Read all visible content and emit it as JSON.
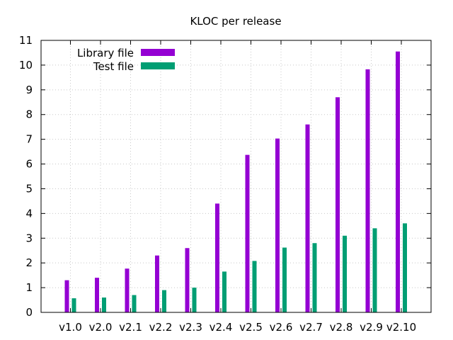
{
  "chart_data": {
    "type": "bar",
    "title": "KLOC per release",
    "xlabel": "",
    "ylabel": "",
    "categories": [
      "v1.0",
      "v2.0",
      "v2.1",
      "v2.2",
      "v2.3",
      "v2.4",
      "v2.5",
      "v2.6",
      "v2.7",
      "v2.8",
      "v2.9",
      "v2.10"
    ],
    "series": [
      {
        "name": "Library file",
        "color": "#9400d3",
        "values": [
          1.3,
          1.4,
          1.77,
          2.3,
          2.6,
          4.4,
          6.37,
          7.03,
          7.6,
          8.7,
          9.83,
          10.55
        ]
      },
      {
        "name": "Test file",
        "color": "#009e73",
        "values": [
          0.57,
          0.6,
          0.7,
          0.9,
          1.0,
          1.65,
          2.08,
          2.62,
          2.8,
          3.1,
          3.4,
          3.6
        ]
      }
    ],
    "ylim": [
      0,
      11
    ],
    "yticks": [
      0,
      1,
      2,
      3,
      4,
      5,
      6,
      7,
      8,
      9,
      10,
      11
    ],
    "grid": true,
    "legend_position": "top-left"
  }
}
